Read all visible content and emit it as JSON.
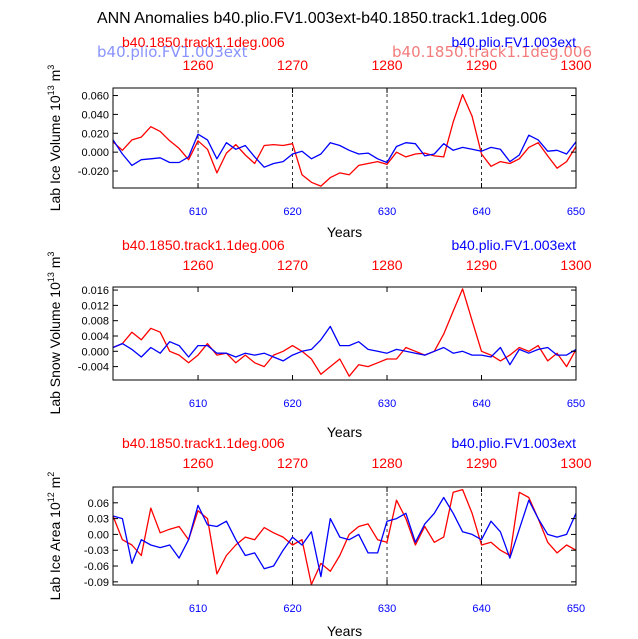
{
  "title": "ANN Anomalies b40.plio.FV1.003ext-b40.1850.track1.1deg.006",
  "colors": {
    "red": "#ff0000",
    "blue": "#0000ff",
    "blue_faded": "#5a6aff",
    "red_faded": "#f06060",
    "black": "#000000"
  },
  "overlay": {
    "left": "b40.plio.FV1.003ext",
    "right": "b40.1850.track1.1deg.006"
  },
  "chart_data": [
    {
      "type": "line",
      "ylabel": "Lab Ice Volume 10",
      "ylabel_exp": "13",
      "ylabel_unit": "m",
      "ylabel_unit_exp": "3",
      "xlabel": "Years",
      "xlim": [
        601,
        650
      ],
      "ylim": [
        -0.038,
        0.068
      ],
      "yticks": [
        -0.02,
        0.0,
        0.02,
        0.04,
        0.06
      ],
      "ytick_labels": [
        "-0.020",
        "0.000",
        "0.020",
        "0.040",
        "0.060"
      ],
      "xticks": [
        610,
        620,
        630,
        640,
        650
      ],
      "xtick_labels": [
        "610",
        "620",
        "630",
        "640",
        "650"
      ],
      "top_xticks": [
        610,
        620,
        630,
        640,
        650
      ],
      "top_xtick_labels": [
        "1260",
        "1270",
        "1280",
        "1290",
        "1300"
      ],
      "dashed_grid_x": [
        610,
        620,
        630,
        640
      ],
      "red_label": "b40.1850.track1.1deg.006",
      "blue_label": "b40.plio.FV1.003ext",
      "series": [
        {
          "name": "b40.1850.track1.1deg.006",
          "color": "#ff0000",
          "values": [
            0.011,
            0.002,
            0.013,
            0.016,
            0.027,
            0.022,
            0.012,
            0.004,
            -0.008,
            0.012,
            0.003,
            -0.022,
            -0.001,
            0.008,
            -0.003,
            -0.012,
            0.007,
            0.008,
            0.007,
            0.009,
            -0.024,
            -0.032,
            -0.036,
            -0.027,
            -0.022,
            -0.024,
            -0.014,
            -0.012,
            -0.01,
            -0.013,
            0.0,
            -0.005,
            -0.002,
            -0.001,
            -0.004,
            -0.005,
            0.032,
            0.061,
            0.038,
            -0.002,
            -0.015,
            -0.01,
            -0.012,
            -0.007,
            0.005,
            0.01,
            -0.004,
            -0.017,
            -0.01,
            0.006
          ]
        },
        {
          "name": "b40.plio.FV1.003ext",
          "color": "#0000ff",
          "values": [
            0.013,
            -0.002,
            -0.014,
            -0.008,
            -0.007,
            -0.006,
            -0.011,
            -0.011,
            -0.005,
            0.019,
            0.013,
            -0.007,
            0.01,
            0.003,
            0.007,
            -0.005,
            -0.016,
            -0.012,
            -0.01,
            -0.002,
            0.001,
            -0.007,
            -0.002,
            0.01,
            0.007,
            0.002,
            -0.002,
            -0.001,
            -0.007,
            -0.011,
            0.006,
            0.01,
            0.009,
            -0.004,
            -0.002,
            0.009,
            0.002,
            0.005,
            0.003,
            0.001,
            0.005,
            0.003,
            -0.01,
            -0.003,
            0.018,
            0.013,
            0.001,
            0.002,
            -0.002,
            0.011
          ]
        }
      ]
    },
    {
      "type": "line",
      "ylabel": "Lab Snow Volume 10",
      "ylabel_exp": "13",
      "ylabel_unit": "m",
      "ylabel_unit_exp": "3",
      "xlabel": "Years",
      "xlim": [
        601,
        650
      ],
      "ylim": [
        -0.0075,
        0.0168
      ],
      "yticks": [
        -0.004,
        0.0,
        0.004,
        0.008,
        0.012,
        0.016
      ],
      "ytick_labels": [
        "-0.004",
        "0.000",
        "0.004",
        "0.008",
        "0.012",
        "0.016"
      ],
      "xticks": [
        610,
        620,
        630,
        640,
        650
      ],
      "xtick_labels": [
        "610",
        "620",
        "630",
        "640",
        "650"
      ],
      "top_xticks": [
        610,
        620,
        630,
        640,
        650
      ],
      "top_xtick_labels": [
        "1260",
        "1270",
        "1280",
        "1290",
        "1300"
      ],
      "dashed_grid_x": [],
      "red_label": "b40.1850.track1.1deg.006",
      "blue_label": "b40.plio.FV1.003ext",
      "series": [
        {
          "name": "b40.1850.track1.1deg.006",
          "color": "#ff0000",
          "values": [
            0.001,
            0.002,
            0.005,
            0.003,
            0.006,
            0.005,
            0.0,
            -0.001,
            -0.003,
            -0.001,
            0.002,
            -0.001,
            -0.0005,
            -0.003,
            -0.001,
            -0.003,
            -0.004,
            -0.001,
            0.0,
            0.0015,
            0.0,
            -0.002,
            -0.006,
            -0.004,
            -0.002,
            -0.0065,
            -0.0035,
            -0.004,
            -0.003,
            -0.002,
            -0.002,
            0.001,
            0.0,
            -0.001,
            0.0,
            0.0045,
            0.0105,
            0.0163,
            0.008,
            0.0,
            -0.001,
            -0.0025,
            -0.001,
            0.001,
            0.0,
            0.0015,
            -0.0025,
            -0.0005,
            -0.004,
            0.0005
          ]
        },
        {
          "name": "b40.plio.FV1.003ext",
          "color": "#0000ff",
          "values": [
            0.001,
            0.002,
            0.0005,
            -0.0015,
            0.001,
            -0.0005,
            0.0025,
            0.0015,
            -0.0015,
            0.0015,
            0.0015,
            -0.0005,
            -0.0005,
            -0.0015,
            -0.0005,
            -0.001,
            -0.0005,
            -0.0015,
            -0.0025,
            -0.001,
            0.0,
            0.0005,
            0.003,
            0.0065,
            0.0015,
            0.0015,
            0.0025,
            0.0005,
            0.0,
            -0.0005,
            0.0005,
            0.0,
            -0.0005,
            -0.001,
            0.0,
            0.001,
            -0.0005,
            0.0,
            -0.001,
            -0.001,
            -0.0015,
            0.001,
            -0.0035,
            0.0005,
            -0.0005,
            0.0005,
            0.001,
            -0.001,
            -0.001,
            0.0005
          ]
        }
      ]
    },
    {
      "type": "line",
      "ylabel": "Lab Ice Area 10",
      "ylabel_exp": "12",
      "ylabel_unit": "m",
      "ylabel_unit_exp": "2",
      "xlabel": "Years",
      "xlim": [
        601,
        650
      ],
      "ylim": [
        -0.096,
        0.09
      ],
      "yticks": [
        -0.09,
        -0.06,
        -0.03,
        0.0,
        0.03,
        0.06
      ],
      "ytick_labels": [
        "-0.09",
        "-0.06",
        "-0.03",
        "0.00",
        "0.03",
        "0.06"
      ],
      "xticks": [
        610,
        620,
        630,
        640,
        650
      ],
      "xtick_labels": [
        "610",
        "620",
        "630",
        "640",
        "650"
      ],
      "top_xticks": [
        610,
        620,
        630,
        640,
        650
      ],
      "top_xtick_labels": [
        "1260",
        "1270",
        "1280",
        "1290",
        "1300"
      ],
      "dashed_grid_x": [
        620,
        630,
        640
      ],
      "red_label": "b40.1850.track1.1deg.006",
      "blue_label": "b40.plio.FV1.003ext",
      "series": [
        {
          "name": "b40.1850.track1.1deg.006",
          "color": "#ff0000",
          "values": [
            0.035,
            -0.01,
            -0.02,
            -0.04,
            0.05,
            0.003,
            0.01,
            0.015,
            -0.01,
            0.045,
            0.03,
            -0.075,
            -0.04,
            -0.02,
            -0.005,
            -0.01,
            0.013,
            0.003,
            -0.005,
            -0.02,
            -0.01,
            -0.095,
            -0.055,
            -0.07,
            -0.04,
            0.0,
            0.015,
            0.02,
            -0.01,
            -0.015,
            0.065,
            0.03,
            -0.02,
            0.015,
            -0.015,
            -0.005,
            0.08,
            0.085,
            0.04,
            -0.02,
            -0.015,
            -0.03,
            -0.04,
            0.08,
            0.07,
            0.03,
            -0.015,
            -0.035,
            -0.02,
            -0.03
          ]
        },
        {
          "name": "b40.plio.FV1.003ext",
          "color": "#0000ff",
          "values": [
            0.035,
            0.03,
            -0.055,
            -0.01,
            -0.02,
            -0.025,
            -0.02,
            -0.045,
            -0.01,
            0.055,
            0.018,
            0.015,
            0.025,
            -0.01,
            -0.04,
            -0.035,
            -0.065,
            -0.06,
            -0.03,
            -0.005,
            -0.02,
            0.005,
            -0.08,
            0.03,
            -0.005,
            -0.01,
            0.0,
            -0.035,
            -0.035,
            0.025,
            0.03,
            0.04,
            -0.015,
            0.02,
            0.04,
            0.07,
            0.04,
            0.005,
            0.0,
            -0.01,
            0.025,
            0.005,
            -0.045,
            0.01,
            0.065,
            0.03,
            0.0,
            -0.005,
            0.0,
            0.04
          ]
        }
      ]
    }
  ]
}
